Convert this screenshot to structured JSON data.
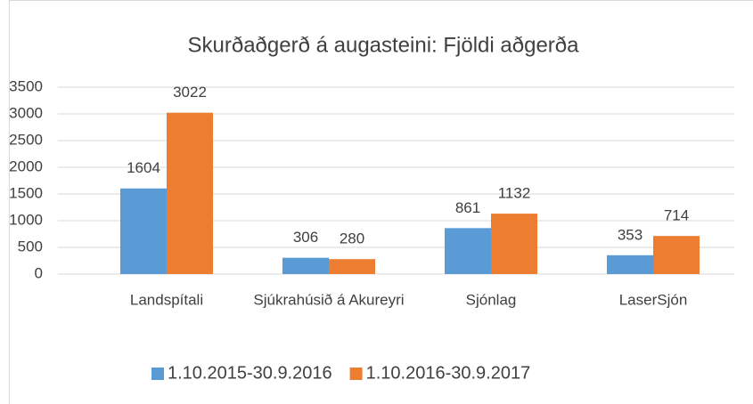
{
  "chart_data": {
    "type": "bar",
    "title": "Skurðaðgerð á augasteini: Fjöldi aðgerða",
    "categories": [
      "Landspítali",
      "Sjúkrahúsið á Akureyri",
      "Sjónlag",
      "LaserSjón"
    ],
    "series": [
      {
        "name": "1.10.2015-30.9.2016",
        "color": "#5b9bd5",
        "values": [
          1604,
          306,
          861,
          353
        ]
      },
      {
        "name": "1.10.2016-30.9.2017",
        "color": "#ed7d31",
        "values": [
          3022,
          280,
          1132,
          714
        ]
      }
    ],
    "ylim": [
      0,
      3500
    ],
    "yticks": [
      0,
      500,
      1000,
      1500,
      2000,
      2500,
      3000,
      3500
    ],
    "grid": true,
    "legend": "bottom"
  }
}
